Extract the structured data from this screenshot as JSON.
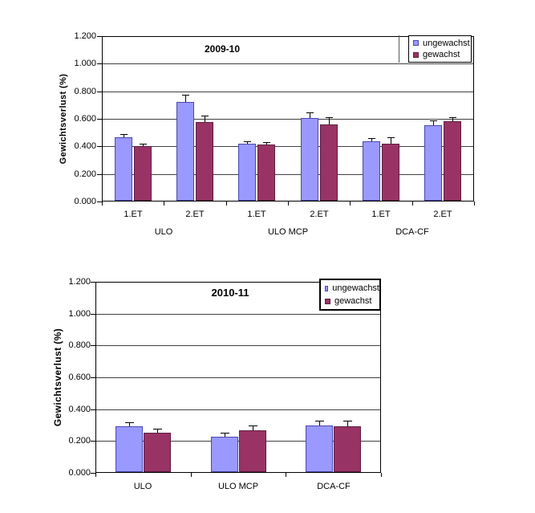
{
  "figure": {
    "background": "#ffffff",
    "gridline_color": "#404040",
    "axis_color": "#000000"
  },
  "chart_data": [
    {
      "type": "bar",
      "title": "2009-10",
      "xlabel": "",
      "ylabel": "Gewichtsverlust (%)",
      "ylim": [
        0,
        1.2
      ],
      "ytick_step": 0.2,
      "yticks": [
        "0.000",
        "0.200",
        "0.400",
        "0.600",
        "0.800",
        "1.000",
        "1.200"
      ],
      "categories": [
        "1.ET",
        "2.ET",
        "1.ET",
        "2.ET",
        "1.ET",
        "2.ET"
      ],
      "group_labels": [
        "ULO",
        "ULO MCP",
        "DCA-CF"
      ],
      "group_span": 2,
      "grid": true,
      "legend_position": "top-right",
      "series": [
        {
          "name": "ungewachst",
          "color": "#9999FF",
          "border_color": "#4848b0",
          "values": [
            0.465,
            0.72,
            0.42,
            0.605,
            0.435,
            0.555
          ],
          "errors": [
            0.025,
            0.055,
            0.018,
            0.04,
            0.022,
            0.037
          ]
        },
        {
          "name": "gewachst",
          "color": "#993366",
          "border_color": "#5e1f3e",
          "values": [
            0.4,
            0.575,
            0.413,
            0.557,
            0.418,
            0.585
          ],
          "errors": [
            0.018,
            0.048,
            0.018,
            0.055,
            0.048,
            0.032
          ]
        }
      ]
    },
    {
      "type": "bar",
      "title": "2010-11",
      "xlabel": "",
      "ylabel": "Gewichtsverlust (%)",
      "ylim": [
        0,
        1.2
      ],
      "ytick_step": 0.2,
      "yticks": [
        "0.000",
        "0.200",
        "0.400",
        "0.600",
        "0.800",
        "1.000",
        "1.200"
      ],
      "categories": [
        "ULO",
        "ULO MCP",
        "DCA-CF"
      ],
      "grid": true,
      "legend_position": "top-right",
      "series": [
        {
          "name": "ungewachst",
          "color": "#9999FF",
          "border_color": "#4848b0",
          "values": [
            0.29,
            0.226,
            0.298
          ],
          "errors": [
            0.027,
            0.027,
            0.028
          ]
        },
        {
          "name": "gewachst",
          "color": "#993366",
          "border_color": "#5e1f3e",
          "values": [
            0.254,
            0.269,
            0.29
          ],
          "errors": [
            0.027,
            0.03,
            0.035
          ]
        }
      ]
    }
  ]
}
